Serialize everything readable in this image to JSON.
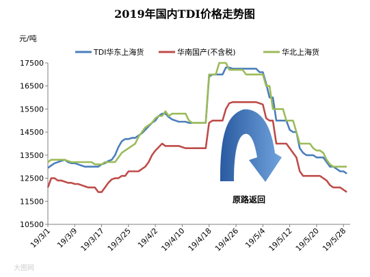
{
  "chart_data": {
    "type": "line",
    "title": "2019年国内TDI价格走势图",
    "ylabel": "元/吨",
    "ylim": [
      10500,
      17500
    ],
    "yticks": [
      10500,
      11500,
      12500,
      13500,
      14500,
      15500,
      16500,
      17500
    ],
    "xrange": [
      0,
      90
    ],
    "xticks": [
      {
        "label": "19/3/1",
        "day": 0
      },
      {
        "label": "19/3/9",
        "day": 8
      },
      {
        "label": "19/3/17",
        "day": 16
      },
      {
        "label": "19/3/25",
        "day": 24
      },
      {
        "label": "19/4/2",
        "day": 32
      },
      {
        "label": "19/4/10",
        "day": 40
      },
      {
        "label": "19/4/18",
        "day": 48
      },
      {
        "label": "19/4/26",
        "day": 56
      },
      {
        "label": "19/5/4",
        "day": 64
      },
      {
        "label": "19/5/12",
        "day": 72
      },
      {
        "label": "19/5/20",
        "day": 80
      },
      {
        "label": "19/5/28",
        "day": 88
      }
    ],
    "legend_position": "top",
    "series": [
      {
        "name": "TDI华东上海货",
        "color": "#4a7ebb",
        "points": [
          [
            0,
            12950
          ],
          [
            1,
            13050
          ],
          [
            2,
            13150
          ],
          [
            3,
            13200
          ],
          [
            4,
            13250
          ],
          [
            5,
            13300
          ],
          [
            6,
            13200
          ],
          [
            7,
            13150
          ],
          [
            8,
            13150
          ],
          [
            9,
            13100
          ],
          [
            10,
            13050
          ],
          [
            11,
            13000
          ],
          [
            12,
            13000
          ],
          [
            13,
            13000
          ],
          [
            14,
            13000
          ],
          [
            15,
            13000
          ],
          [
            16,
            13100
          ],
          [
            17,
            13150
          ],
          [
            18,
            13250
          ],
          [
            19,
            13300
          ],
          [
            20,
            13500
          ],
          [
            21,
            13850
          ],
          [
            22,
            14100
          ],
          [
            23,
            14200
          ],
          [
            24,
            14200
          ],
          [
            25,
            14250
          ],
          [
            26,
            14250
          ],
          [
            27,
            14350
          ],
          [
            28,
            14450
          ],
          [
            29,
            14600
          ],
          [
            30,
            14750
          ],
          [
            31,
            14900
          ],
          [
            32,
            15000
          ],
          [
            33,
            15200
          ],
          [
            34,
            15300
          ],
          [
            35,
            15300
          ],
          [
            36,
            15150
          ],
          [
            37,
            15050
          ],
          [
            38,
            15000
          ],
          [
            39,
            14950
          ],
          [
            40,
            14950
          ],
          [
            41,
            14950
          ],
          [
            42,
            14900
          ],
          [
            43,
            14900
          ],
          [
            44,
            14900
          ],
          [
            45,
            14900
          ],
          [
            46,
            14900
          ],
          [
            47,
            14900
          ],
          [
            48,
            16900
          ],
          [
            49,
            17000
          ],
          [
            50,
            17000
          ],
          [
            51,
            17000
          ],
          [
            52,
            17000
          ],
          [
            53,
            17300
          ],
          [
            54,
            17300
          ],
          [
            55,
            17250
          ],
          [
            56,
            17250
          ],
          [
            57,
            17250
          ],
          [
            58,
            17250
          ],
          [
            59,
            17250
          ],
          [
            60,
            17250
          ],
          [
            61,
            17250
          ],
          [
            62,
            17250
          ],
          [
            63,
            17100
          ],
          [
            64,
            17100
          ],
          [
            65,
            16600
          ],
          [
            66,
            16000
          ],
          [
            67,
            16000
          ],
          [
            68,
            15000
          ],
          [
            69,
            15000
          ],
          [
            70,
            15000
          ],
          [
            71,
            15000
          ],
          [
            72,
            14600
          ],
          [
            73,
            14500
          ],
          [
            74,
            14500
          ],
          [
            75,
            13800
          ],
          [
            76,
            13600
          ],
          [
            77,
            13500
          ],
          [
            78,
            13500
          ],
          [
            79,
            13500
          ],
          [
            80,
            13400
          ],
          [
            81,
            13400
          ],
          [
            82,
            13400
          ],
          [
            83,
            13200
          ],
          [
            84,
            13000
          ],
          [
            85,
            13000
          ],
          [
            86,
            12900
          ],
          [
            87,
            12800
          ],
          [
            88,
            12800
          ],
          [
            89,
            12700
          ]
        ]
      },
      {
        "name": "华南国产(不含税)",
        "color": "#be4b48",
        "points": [
          [
            0,
            12100
          ],
          [
            1,
            12500
          ],
          [
            2,
            12500
          ],
          [
            3,
            12400
          ],
          [
            4,
            12400
          ],
          [
            5,
            12350
          ],
          [
            6,
            12300
          ],
          [
            7,
            12300
          ],
          [
            8,
            12250
          ],
          [
            9,
            12250
          ],
          [
            10,
            12200
          ],
          [
            11,
            12150
          ],
          [
            12,
            12100
          ],
          [
            13,
            12100
          ],
          [
            14,
            12100
          ],
          [
            15,
            11900
          ],
          [
            16,
            11900
          ],
          [
            17,
            12100
          ],
          [
            18,
            12300
          ],
          [
            19,
            12450
          ],
          [
            20,
            12500
          ],
          [
            21,
            12500
          ],
          [
            22,
            12600
          ],
          [
            23,
            12600
          ],
          [
            24,
            12800
          ],
          [
            25,
            12800
          ],
          [
            26,
            12800
          ],
          [
            27,
            12800
          ],
          [
            28,
            12900
          ],
          [
            29,
            13000
          ],
          [
            30,
            13200
          ],
          [
            31,
            13500
          ],
          [
            32,
            13700
          ],
          [
            33,
            13850
          ],
          [
            34,
            14000
          ],
          [
            35,
            13900
          ],
          [
            36,
            13900
          ],
          [
            37,
            13900
          ],
          [
            38,
            13900
          ],
          [
            39,
            13900
          ],
          [
            40,
            13850
          ],
          [
            41,
            13800
          ],
          [
            42,
            13800
          ],
          [
            43,
            13800
          ],
          [
            44,
            13800
          ],
          [
            45,
            13800
          ],
          [
            46,
            13800
          ],
          [
            47,
            13800
          ],
          [
            48,
            14900
          ],
          [
            49,
            15000
          ],
          [
            50,
            15000
          ],
          [
            51,
            15000
          ],
          [
            52,
            15000
          ],
          [
            53,
            15500
          ],
          [
            54,
            15750
          ],
          [
            55,
            15800
          ],
          [
            56,
            15800
          ],
          [
            57,
            15800
          ],
          [
            58,
            15800
          ],
          [
            59,
            15800
          ],
          [
            60,
            15800
          ],
          [
            61,
            15800
          ],
          [
            62,
            15800
          ],
          [
            63,
            15750
          ],
          [
            64,
            15700
          ],
          [
            65,
            15100
          ],
          [
            66,
            15000
          ],
          [
            67,
            15000
          ],
          [
            68,
            14000
          ],
          [
            69,
            14000
          ],
          [
            70,
            14000
          ],
          [
            71,
            14000
          ],
          [
            72,
            13800
          ],
          [
            73,
            13600
          ],
          [
            74,
            13400
          ],
          [
            75,
            12800
          ],
          [
            76,
            12600
          ],
          [
            77,
            12600
          ],
          [
            78,
            12600
          ],
          [
            79,
            12600
          ],
          [
            80,
            12600
          ],
          [
            81,
            12600
          ],
          [
            82,
            12500
          ],
          [
            83,
            12400
          ],
          [
            84,
            12200
          ],
          [
            85,
            12100
          ],
          [
            86,
            12100
          ],
          [
            87,
            12100
          ],
          [
            88,
            12000
          ],
          [
            89,
            11900
          ]
        ]
      },
      {
        "name": "华北上海货",
        "color": "#9bbb59",
        "points": [
          [
            0,
            13200
          ],
          [
            1,
            13300
          ],
          [
            2,
            13300
          ],
          [
            3,
            13300
          ],
          [
            4,
            13300
          ],
          [
            5,
            13300
          ],
          [
            6,
            13250
          ],
          [
            7,
            13200
          ],
          [
            8,
            13200
          ],
          [
            9,
            13200
          ],
          [
            10,
            13200
          ],
          [
            11,
            13200
          ],
          [
            12,
            13200
          ],
          [
            13,
            13200
          ],
          [
            14,
            13100
          ],
          [
            15,
            13100
          ],
          [
            16,
            13100
          ],
          [
            17,
            13200
          ],
          [
            18,
            13200
          ],
          [
            19,
            13200
          ],
          [
            20,
            13200
          ],
          [
            21,
            13400
          ],
          [
            22,
            13600
          ],
          [
            23,
            13700
          ],
          [
            24,
            13800
          ],
          [
            25,
            13900
          ],
          [
            26,
            14000
          ],
          [
            27,
            14300
          ],
          [
            28,
            14500
          ],
          [
            29,
            14700
          ],
          [
            30,
            14800
          ],
          [
            31,
            14900
          ],
          [
            32,
            15100
          ],
          [
            33,
            15200
          ],
          [
            34,
            15200
          ],
          [
            35,
            15400
          ],
          [
            36,
            15200
          ],
          [
            37,
            15300
          ],
          [
            38,
            15300
          ],
          [
            39,
            15300
          ],
          [
            40,
            15300
          ],
          [
            41,
            15300
          ],
          [
            42,
            15000
          ],
          [
            43,
            14900
          ],
          [
            44,
            14900
          ],
          [
            45,
            14900
          ],
          [
            46,
            14900
          ],
          [
            47,
            14900
          ],
          [
            48,
            17000
          ],
          [
            49,
            17000
          ],
          [
            50,
            17000
          ],
          [
            51,
            17500
          ],
          [
            52,
            17500
          ],
          [
            53,
            17500
          ],
          [
            54,
            17200
          ],
          [
            55,
            17200
          ],
          [
            56,
            17200
          ],
          [
            57,
            17200
          ],
          [
            58,
            17200
          ],
          [
            59,
            17000
          ],
          [
            60,
            17000
          ],
          [
            61,
            17000
          ],
          [
            62,
            17000
          ],
          [
            63,
            17000
          ],
          [
            64,
            17000
          ],
          [
            65,
            16500
          ],
          [
            66,
            16500
          ],
          [
            67,
            15500
          ],
          [
            68,
            15500
          ],
          [
            69,
            15500
          ],
          [
            70,
            15500
          ],
          [
            71,
            15000
          ],
          [
            72,
            15000
          ],
          [
            73,
            15000
          ],
          [
            74,
            14500
          ],
          [
            75,
            14000
          ],
          [
            76,
            14000
          ],
          [
            77,
            14000
          ],
          [
            78,
            14000
          ],
          [
            79,
            13800
          ],
          [
            80,
            13700
          ],
          [
            81,
            13700
          ],
          [
            82,
            13600
          ],
          [
            83,
            13300
          ],
          [
            84,
            13100
          ],
          [
            85,
            13000
          ],
          [
            86,
            13000
          ],
          [
            87,
            13000
          ],
          [
            88,
            13000
          ],
          [
            89,
            13000
          ]
        ]
      }
    ],
    "annotation": {
      "text": "原路返回",
      "color_dark": "#2a5aa0",
      "color_light": "#6fa3dc"
    }
  },
  "watermark": "大图网",
  "colors": {
    "axis": "#7f7f7f",
    "background": "#ffffff"
  }
}
